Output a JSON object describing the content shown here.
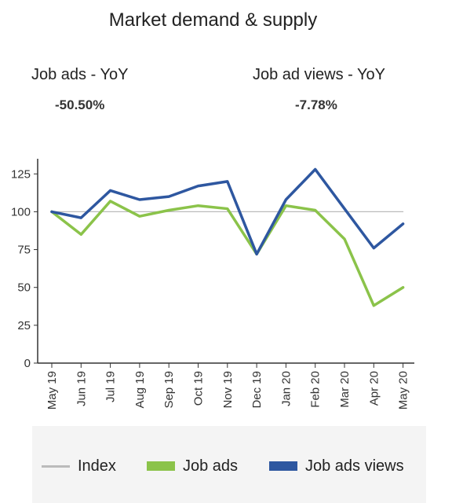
{
  "header": {
    "title": "Market demand & supply"
  },
  "kpis": [
    {
      "label": "Job ads - YoY",
      "value": "-50.50%"
    },
    {
      "label": "Job ad views - YoY",
      "value": "-7.78%"
    }
  ],
  "colors": {
    "index": "#bbbbbb",
    "job_ads": "#8bc34a",
    "job_ads_views": "#2e57a0"
  },
  "chart_data": {
    "type": "line",
    "title": "",
    "xlabel": "",
    "ylabel": "",
    "categories": [
      "May 19",
      "Jun 19",
      "Jul 19",
      "Aug 19",
      "Sep 19",
      "Oct 19",
      "Nov 19",
      "Dec 19",
      "Jan 20",
      "Feb 20",
      "Mar 20",
      "Apr 20",
      "May 20"
    ],
    "series": [
      {
        "name": "Index",
        "values": [
          100,
          100,
          100,
          100,
          100,
          100,
          100,
          100,
          100,
          100,
          100,
          100,
          100
        ]
      },
      {
        "name": "Job ads",
        "values": [
          100,
          85,
          107,
          97,
          101,
          104,
          102,
          72,
          104,
          101,
          82,
          38,
          50
        ]
      },
      {
        "name": "Job ads views",
        "values": [
          100,
          96,
          114,
          108,
          110,
          117,
          120,
          72,
          108,
          128,
          102,
          76,
          92
        ]
      }
    ],
    "yticks": [
      0,
      25,
      50,
      75,
      100,
      125
    ],
    "ylim": [
      0,
      135
    ],
    "grid": false,
    "legend_position": "bottom"
  }
}
